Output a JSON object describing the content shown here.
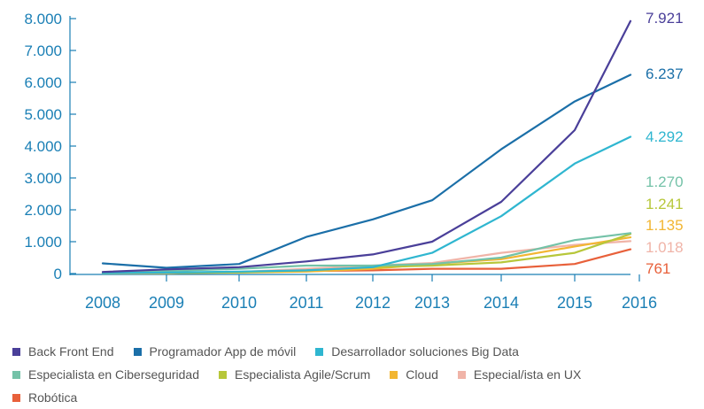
{
  "chart_data": {
    "type": "line",
    "title": "",
    "xlabel": "",
    "ylabel": "",
    "x": [
      "2008",
      "2009",
      "2010",
      "2011",
      "2012",
      "2013",
      "2014",
      "2015",
      "2016"
    ],
    "y_tick_labels": [
      "0",
      "1.000",
      "2.000",
      "3.000",
      "4.000",
      "5.000",
      "6.000",
      "7.000",
      "8.000"
    ],
    "y_ticks": [
      0,
      1000,
      2000,
      3000,
      4000,
      5000,
      6000,
      7000,
      8000
    ],
    "ylim": [
      0,
      8000
    ],
    "grid": false,
    "legend_position": "bottom",
    "series": [
      {
        "name": "Back Front End",
        "color": "#4a3f99",
        "end_label": "7.921",
        "values": [
          50,
          130,
          200,
          380,
          600,
          1000,
          2250,
          4500,
          7921
        ]
      },
      {
        "name": "Programador App de móvil",
        "color": "#1b6fa8",
        "end_label": "6.237",
        "values": [
          320,
          180,
          300,
          1150,
          1700,
          2300,
          3900,
          5400,
          6237
        ]
      },
      {
        "name": "Desarrollador soluciones Big Data",
        "color": "#2fb6d0",
        "end_label": "4.292",
        "values": [
          10,
          30,
          60,
          100,
          200,
          650,
          1800,
          3450,
          4292
        ]
      },
      {
        "name": "Especialista en Ciberseguridad",
        "color": "#74c2a8",
        "end_label": "1.270",
        "values": [
          40,
          80,
          150,
          250,
          250,
          300,
          500,
          1050,
          1270
        ]
      },
      {
        "name": "Especialista Agile/Scrum",
        "color": "#b7c73a",
        "end_label": "1.241",
        "values": [
          10,
          20,
          40,
          100,
          200,
          250,
          350,
          650,
          1241
        ]
      },
      {
        "name": "Cloud",
        "color": "#f2b632",
        "end_label": "1.135",
        "values": [
          5,
          15,
          30,
          60,
          150,
          300,
          450,
          850,
          1135
        ]
      },
      {
        "name": "Especial/ista en UX",
        "color": "#f0b4a8",
        "end_label": "1.018",
        "values": [
          5,
          10,
          50,
          150,
          250,
          330,
          650,
          900,
          1018
        ]
      },
      {
        "name": "Robótica",
        "color": "#e8603a",
        "end_label": "761",
        "values": [
          5,
          10,
          40,
          80,
          100,
          150,
          150,
          300,
          761
        ]
      }
    ]
  }
}
